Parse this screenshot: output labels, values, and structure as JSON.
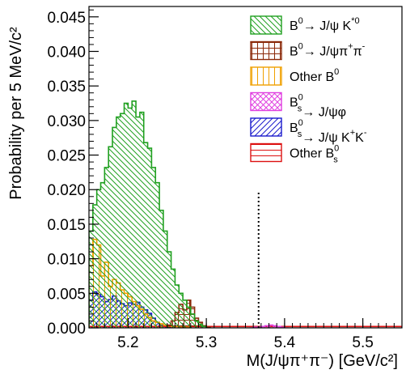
{
  "chart_data": {
    "type": "area",
    "subtype": "stacked-step-histogram",
    "xlabel": "M(J/ψπ⁺π⁻) [GeV/c²]",
    "ylabel": "Probability per 5 MeV/c²",
    "xlim": [
      5.15,
      5.55
    ],
    "ylim": [
      0.0,
      0.0465
    ],
    "x_ticks": [
      {
        "value": 5.2,
        "label": "5.2"
      },
      {
        "value": 5.3,
        "label": "5.3"
      },
      {
        "value": 5.4,
        "label": "5.4"
      },
      {
        "value": 5.5,
        "label": "5.5"
      }
    ],
    "y_ticks": [
      {
        "value": 0.0,
        "label": "0.000"
      },
      {
        "value": 0.005,
        "label": "0.005"
      },
      {
        "value": 0.01,
        "label": "0.010"
      },
      {
        "value": 0.015,
        "label": "0.015"
      },
      {
        "value": 0.02,
        "label": "0.020"
      },
      {
        "value": 0.025,
        "label": "0.025"
      },
      {
        "value": 0.03,
        "label": "0.030"
      },
      {
        "value": 0.035,
        "label": "0.035"
      },
      {
        "value": 0.04,
        "label": "0.040"
      },
      {
        "value": 0.045,
        "label": "0.045"
      }
    ],
    "bin_width": 0.005,
    "grid": false,
    "legend_position": "top-right",
    "vertical_marker": {
      "x": 5.3668,
      "style": "dotted",
      "ymax": 0.0198
    },
    "series": [
      {
        "key": "bs_kk",
        "name": "B_s^0 → J/ψ K⁺K⁻",
        "color": "#1a1acc",
        "pattern": "diag-up",
        "x_start": 5.15,
        "values": [
          0.004,
          0.0052,
          0.0048,
          0.0045,
          0.0038,
          0.0041,
          0.0046,
          0.0039,
          0.0035,
          0.0032,
          0.0036,
          0.0034,
          0.0037,
          0.003,
          0.0026,
          0.0021,
          0.0014,
          0.0008,
          0.0004,
          0.0002,
          0.0001
        ]
      },
      {
        "key": "other_bs",
        "name": "Other B_s^0",
        "color": "#dd1111",
        "pattern": "horizontal",
        "x_start": 5.15,
        "values": [
          0.0002,
          0.0002,
          0.0002,
          0.0002,
          0.0002,
          0.0002,
          0.0002,
          0.0002,
          0.0002,
          0.0002,
          0.0002,
          0.0002,
          0.0002,
          0.0002,
          0.0002,
          0.0002,
          0.0002,
          0.0002,
          0.0002,
          0.0002,
          0.0002,
          0.0002,
          0.0002,
          0.0002,
          0.0002,
          0.0002,
          0.0002,
          0.0002,
          0.0002,
          0.0002,
          0.0002,
          0.0002,
          0.0002,
          0.0002,
          0.0002,
          0.0002,
          0.0002,
          0.0002,
          0.0002,
          0.0002,
          0.0002,
          0.0002,
          0.0002,
          0.0002,
          0.0002,
          0.0002,
          0.0002,
          0.0002,
          0.0002,
          0.0002,
          0.0002,
          0.0002,
          0.0002,
          0.0002,
          0.0002,
          0.0002,
          0.0002,
          0.0002,
          0.0002,
          0.0002,
          0.0002,
          0.0002,
          0.0002,
          0.0002,
          0.0002,
          0.0002,
          0.0002,
          0.0002,
          0.0002,
          0.0002,
          0.0002,
          0.0002,
          0.0002,
          0.0002,
          0.0002,
          0.0002,
          0.0002,
          0.0002,
          0.0002,
          0.0002
        ]
      },
      {
        "key": "bs_phi",
        "name": "B_s^0 → J/ψφ",
        "color": "#e040e0",
        "pattern": "cross",
        "x_start": 5.355,
        "values": [
          0.0,
          0.0001,
          0.0001,
          0.0002,
          0.0003,
          0.0004,
          0.0003,
          0.0002,
          0.0001,
          0.0
        ]
      },
      {
        "key": "other_b0",
        "name": "Other B^0",
        "color": "#f0a000",
        "pattern": "vertical",
        "x_start": 5.15,
        "values": [
          0.009,
          0.0128,
          0.012,
          0.0075,
          0.0095,
          0.006,
          0.007,
          0.0065,
          0.0055,
          0.005,
          0.0045,
          0.0038,
          0.0032,
          0.0027,
          0.002,
          0.0015,
          0.001,
          0.0008,
          0.0006,
          0.0004,
          0.0003,
          0.0002,
          0.0002,
          0.0001,
          0.0001,
          0.0001
        ]
      },
      {
        "key": "b0_pipi",
        "name": "B^0 → J/ψπ⁺π⁻",
        "color": "#8b2a0a",
        "pattern": "grid",
        "x_start": 5.25,
        "values": [
          0.0004,
          0.001,
          0.0022,
          0.0034,
          0.0026,
          0.004,
          0.003,
          0.0014,
          0.0008,
          0.0003,
          0.0001
        ]
      },
      {
        "key": "b0_kstar",
        "name": "B^0 → J/ψ K^{*0}",
        "color": "#20a020",
        "pattern": "diag-down",
        "x_start": 5.15,
        "values": [
          0.014,
          0.0178,
          0.02,
          0.021,
          0.0232,
          0.0262,
          0.029,
          0.0305,
          0.031,
          0.0325,
          0.0318,
          0.0328,
          0.0305,
          0.0312,
          0.0268,
          0.026,
          0.0232,
          0.021,
          0.017,
          0.014,
          0.011,
          0.0085,
          0.0062,
          0.005,
          0.004,
          0.003,
          0.002,
          0.001,
          0.0005,
          0.0002
        ]
      }
    ],
    "legend": [
      {
        "key": "b0_kstar",
        "base": "B",
        "base_sup": "0",
        "rest": "→ J/ψ K",
        "rest_sup": "*0"
      },
      {
        "key": "b0_pipi",
        "base": "B",
        "base_sup": "0",
        "rest": "→ J/ψπ",
        "rest_sup": "+",
        "tail": "π",
        "tail_sup": "-"
      },
      {
        "key": "other_b0",
        "base": "Other B",
        "base_sup": "0"
      },
      {
        "key": "bs_phi",
        "base": "B",
        "base_sup": "0",
        "base_sub": "s",
        "rest": "→ J/ψφ"
      },
      {
        "key": "bs_kk",
        "base": "B",
        "base_sup": "0",
        "base_sub": "s",
        "rest": "→ J/ψ K",
        "rest_sup": "+",
        "tail": "K",
        "tail_sup": "-"
      },
      {
        "key": "other_bs",
        "base": "Other B",
        "base_sup": "0",
        "base_sub": "s"
      }
    ]
  }
}
